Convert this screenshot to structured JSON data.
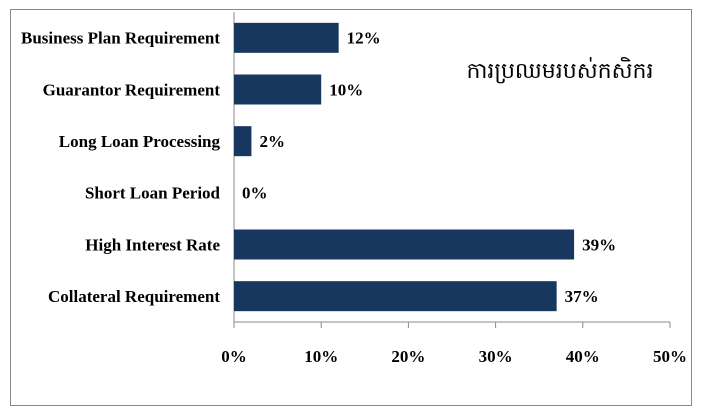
{
  "chart_data": {
    "type": "bar",
    "orientation": "horizontal",
    "annotation": "ការប្រឈមរបស់កសិករ",
    "categories": [
      "Business Plan Requirement",
      "Guarantor Requirement",
      "Long Loan Processing",
      "Short Loan Period",
      "High Interest Rate",
      "Collateral Requirement"
    ],
    "values": [
      12,
      10,
      2,
      0,
      39,
      37
    ],
    "value_labels": [
      "12%",
      "10%",
      "2%",
      "0%",
      "39%",
      "37%"
    ],
    "color": "#17375e",
    "xlim": [
      0,
      50
    ],
    "xticks": [
      {
        "value": 0,
        "label": "0%"
      },
      {
        "value": 10,
        "label": "10%"
      },
      {
        "value": 20,
        "label": "20%"
      },
      {
        "value": 30,
        "label": "30%"
      },
      {
        "value": 40,
        "label": "40%"
      },
      {
        "value": 50,
        "label": "50%"
      }
    ],
    "grid": false
  }
}
